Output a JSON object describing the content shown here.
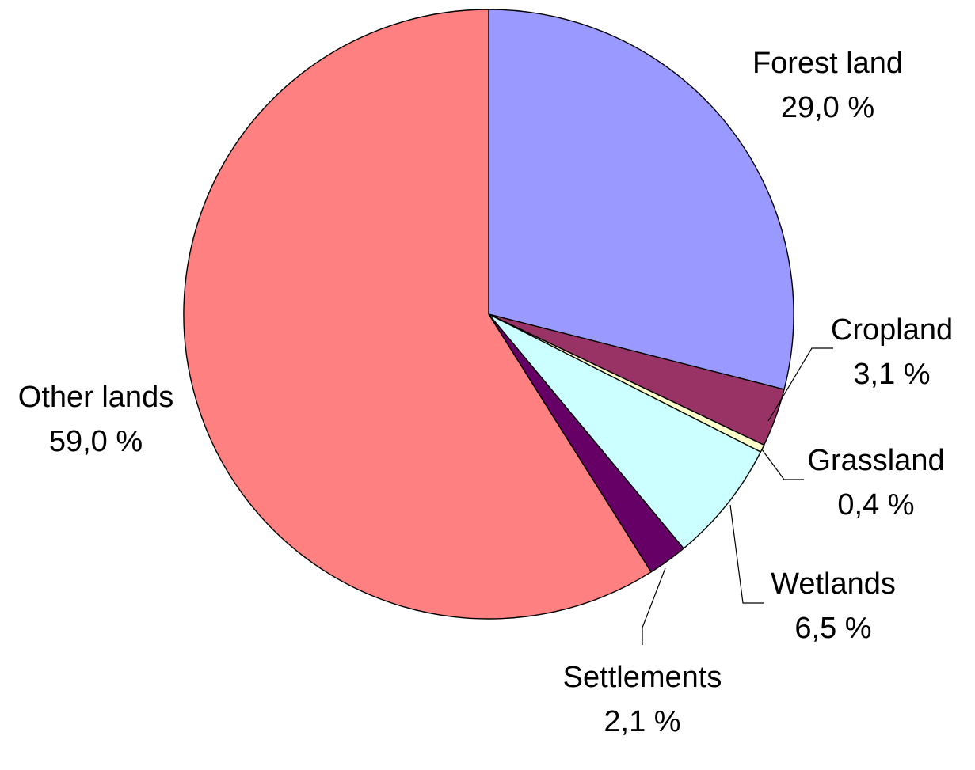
{
  "chart_data": {
    "type": "pie",
    "start_angle_deg": 0,
    "direction": "clockwise",
    "legend": "none",
    "slices": [
      {
        "name": "Forest land",
        "value": 29.0,
        "label": "29,0 %",
        "color": "#9999FF"
      },
      {
        "name": "Cropland",
        "value": 3.1,
        "label": "3,1 %",
        "color": "#993366"
      },
      {
        "name": "Grassland",
        "value": 0.4,
        "label": "0,4 %",
        "color": "#FFFFCC"
      },
      {
        "name": "Wetlands",
        "value": 6.5,
        "label": "6,5 %",
        "color": "#CCFFFF"
      },
      {
        "name": "Settlements",
        "value": 2.1,
        "label": "2,1 %",
        "color": "#660066"
      },
      {
        "name": "Other lands",
        "value": 59.0,
        "label": "59,0 %",
        "color": "#FF8080"
      }
    ]
  }
}
